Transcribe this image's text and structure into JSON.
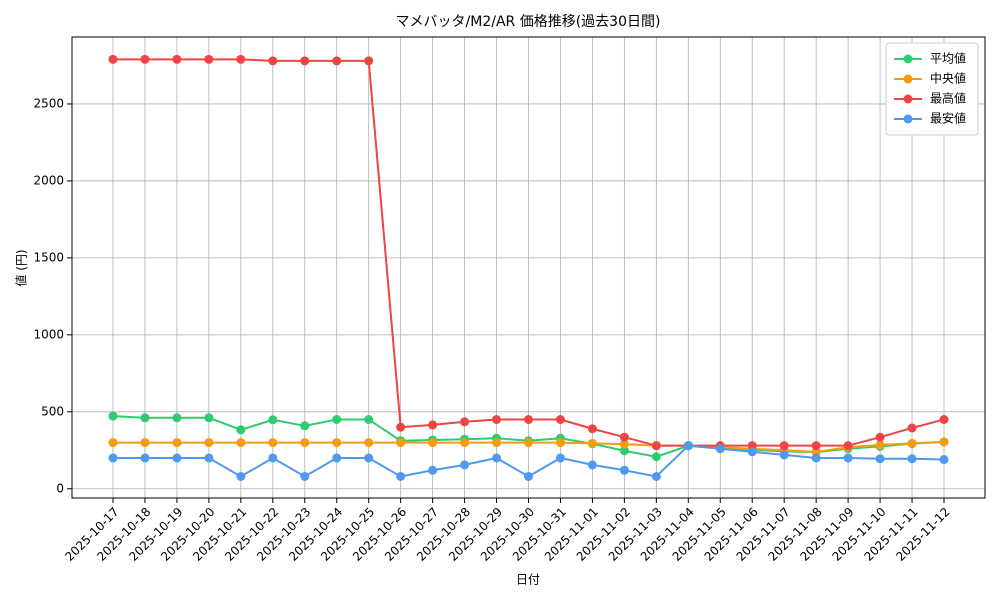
{
  "chart_data": {
    "type": "line",
    "title": "マメバッタ/M2/AR 価格推移(過去30日間)",
    "x_label": "日付",
    "y_label": "値 (円)",
    "categories": [
      "2025-10-17",
      "2025-10-18",
      "2025-10-19",
      "2025-10-20",
      "2025-10-21",
      "2025-10-22",
      "2025-10-23",
      "2025-10-24",
      "2025-10-25",
      "2025-10-26",
      "2025-10-27",
      "2025-10-28",
      "2025-10-29",
      "2025-10-30",
      "2025-10-31",
      "2025-11-01",
      "2025-11-02",
      "2025-11-03",
      "2025-11-04",
      "2025-11-05",
      "2025-11-06",
      "2025-11-07",
      "2025-11-08",
      "2025-11-09",
      "2025-11-10",
      "2025-11-11",
      "2025-11-12"
    ],
    "series": [
      {
        "name": "平均値",
        "color": "#2ecc71",
        "values": [
          472,
          461,
          461,
          461,
          383,
          448,
          409,
          450,
          450,
          312,
          317,
          322,
          328,
          312,
          328,
          292,
          247,
          208,
          279,
          263,
          253,
          243,
          238,
          260,
          275,
          293,
          305
        ]
      },
      {
        "name": "中央値",
        "color": "#f39c12",
        "values": [
          300,
          300,
          300,
          300,
          300,
          300,
          300,
          300,
          300,
          300,
          300,
          300,
          300,
          300,
          300,
          295,
          290,
          280,
          280,
          270,
          260,
          250,
          240,
          270,
          285,
          295,
          305
        ]
      },
      {
        "name": "最高値",
        "color": "#ef4444",
        "values": [
          2790,
          2790,
          2790,
          2790,
          2790,
          2780,
          2780,
          2780,
          2780,
          400,
          415,
          435,
          450,
          450,
          450,
          390,
          335,
          280,
          280,
          280,
          280,
          280,
          280,
          280,
          335,
          395,
          450
        ]
      },
      {
        "name": "最安値",
        "color": "#4e9af1",
        "values": [
          200,
          200,
          200,
          200,
          80,
          200,
          80,
          200,
          200,
          80,
          120,
          155,
          200,
          80,
          200,
          155,
          120,
          80,
          280,
          260,
          240,
          220,
          200,
          200,
          195,
          195,
          190
        ]
      }
    ],
    "ylim": [
      -60,
      2935
    ],
    "yticks": [
      0,
      500,
      1000,
      1500,
      2000,
      2500
    ],
    "grid": true,
    "legend": "upper right"
  }
}
